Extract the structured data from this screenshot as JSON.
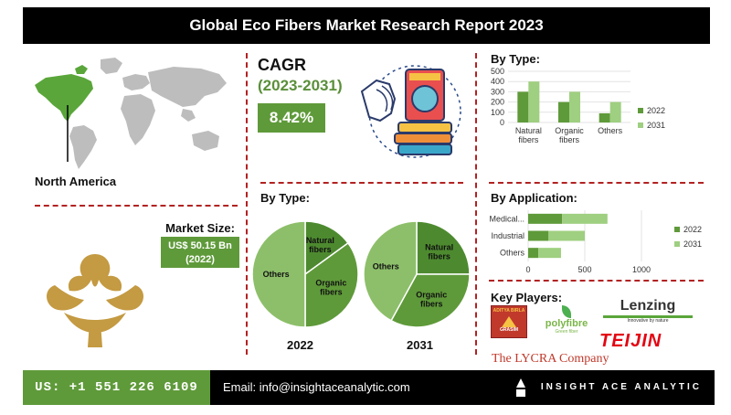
{
  "header": {
    "title": "Global Eco Fibers Market Research Report 2023"
  },
  "region": {
    "label": "North America",
    "highlight_color": "#5aa63a"
  },
  "cagr": {
    "label": "CAGR",
    "period": "(2023-2031)",
    "value": "8.42%"
  },
  "market_size": {
    "label": "Market Size:",
    "value": "US$ 50.15 Bn",
    "year": "(2022)"
  },
  "key_players": {
    "label": "Key Players:",
    "companies": [
      {
        "name": "ADITYA BIRLA",
        "sub": "GRASIM"
      },
      {
        "name": "polyfibre",
        "sub": "Green fiber"
      },
      {
        "name": "Lenzing",
        "sub": "Innovative by nature"
      },
      {
        "name": "TEIJIN"
      },
      {
        "name": "The LYCRA Company"
      }
    ]
  },
  "footer": {
    "phone": "US: +1 551 226 6109",
    "email": "Email: info@insightaceanalytic.com",
    "brand": "INSIGHT ACE ANALYTIC"
  },
  "colors": {
    "dark_green": "#5f9a3a",
    "light_green": "#9fcf80",
    "red_dash": "#b22222"
  },
  "chart_data": [
    {
      "type": "bar",
      "title": "By Type:",
      "categories": [
        "Natural fibers",
        "Organic fibers",
        "Others"
      ],
      "series": [
        {
          "name": "2022",
          "values": [
            300,
            200,
            90
          ],
          "color": "#5f9a3a"
        },
        {
          "name": "2031",
          "values": [
            400,
            300,
            200
          ],
          "color": "#9fcf80"
        }
      ],
      "ylim": [
        0,
        500
      ],
      "yticks": [
        "0",
        "100",
        "200",
        "300",
        "400",
        "500"
      ],
      "legend": "right"
    },
    {
      "type": "bar",
      "orientation": "horizontal",
      "stacked": true,
      "title": "By Application:",
      "categories": [
        "Medical...",
        "Industrial",
        "Others"
      ],
      "series": [
        {
          "name": "2022",
          "values": [
            300,
            180,
            90
          ],
          "color": "#5f9a3a"
        },
        {
          "name": "2031",
          "values": [
            400,
            320,
            200
          ],
          "color": "#9fcf80"
        }
      ],
      "xlim": [
        0,
        1000
      ],
      "xticks": [
        "0",
        "500",
        "1000"
      ],
      "legend": "right"
    },
    {
      "type": "pie",
      "title": "By Type:",
      "year": "2022",
      "slices": [
        {
          "label": "Natural fibers",
          "value": 15,
          "color": "#4d8a2f"
        },
        {
          "label": "Organic fibers",
          "value": 35,
          "color": "#5f9a3a"
        },
        {
          "label": "Others",
          "value": 50,
          "color": "#8dbf6a"
        }
      ]
    },
    {
      "type": "pie",
      "year": "2031",
      "slices": [
        {
          "label": "Natural fibers",
          "value": 25,
          "color": "#4d8a2f"
        },
        {
          "label": "Organic fibers",
          "value": 33,
          "color": "#5f9a3a"
        },
        {
          "label": "Others",
          "value": 42,
          "color": "#8dbf6a"
        }
      ]
    }
  ]
}
